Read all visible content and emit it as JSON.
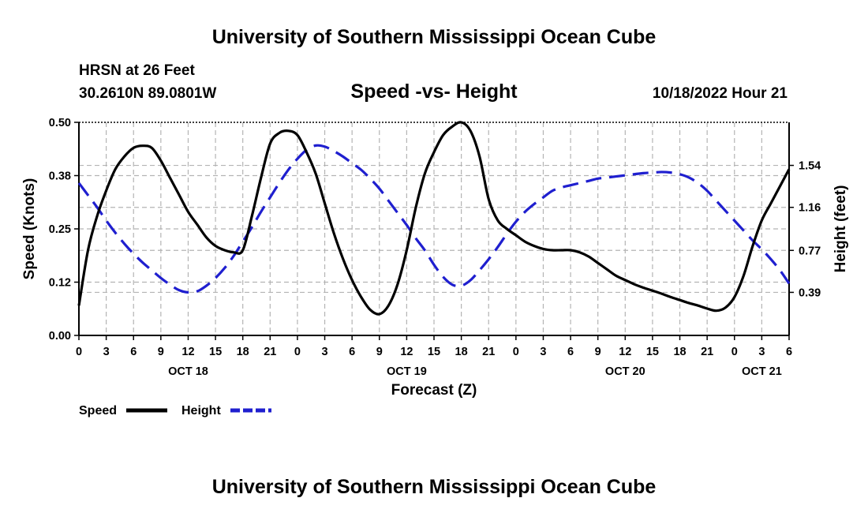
{
  "header": {
    "top_title": "University of Southern Mississippi Ocean Cube",
    "station": "HRSN at 26 Feet",
    "coords": "30.2610N  89.0801W",
    "chart_title": "Speed -vs- Height",
    "timestamp": "10/18/2022 Hour 21",
    "bottom_title": "University of Southern Mississippi Ocean Cube"
  },
  "chart_data": {
    "type": "line",
    "title": "Speed -vs- Height",
    "xlabel": "Forecast (Z)",
    "ylabel": "Speed (Knots)",
    "y2label": "Height (feet)",
    "x_unit": "hours since 10/18 00Z",
    "xlim": [
      0,
      78
    ],
    "ylim": [
      0,
      0.5
    ],
    "y2lim": [
      0.0,
      1.93
    ],
    "grid": true,
    "x_ticks": [
      0,
      3,
      6,
      9,
      12,
      15,
      18,
      21,
      24,
      27,
      30,
      33,
      36,
      39,
      42,
      45,
      48,
      51,
      54,
      57,
      60,
      63,
      66,
      69,
      72,
      75,
      78
    ],
    "x_tick_labels": [
      "0",
      "3",
      "6",
      "9",
      "12",
      "15",
      "18",
      "21",
      "0",
      "3",
      "6",
      "9",
      "12",
      "15",
      "18",
      "21",
      "0",
      "3",
      "6",
      "9",
      "12",
      "15",
      "18",
      "21",
      "0",
      "3",
      "6"
    ],
    "date_labels": [
      {
        "x": 12,
        "label": "OCT 18"
      },
      {
        "x": 36,
        "label": "OCT 19"
      },
      {
        "x": 60,
        "label": "OCT 20"
      },
      {
        "x": 75,
        "label": "OCT 21"
      }
    ],
    "y_ticks": [
      0,
      0.125,
      0.25,
      0.375,
      0.5
    ],
    "y_tick_labels": [
      "0.00",
      "0.12",
      "0.25",
      "0.38",
      "0.50"
    ],
    "y2_ticks": [
      0.39,
      0.77,
      1.16,
      1.54
    ],
    "y2_tick_labels": [
      "0.39",
      "0.77",
      "1.16",
      "1.54"
    ],
    "series": [
      {
        "name": "Speed",
        "axis": "left",
        "color": "#000000",
        "dash": "solid",
        "x": [
          0,
          1,
          2,
          3,
          4,
          5,
          6,
          7,
          8,
          9,
          10,
          11,
          12,
          13,
          14,
          15,
          16,
          17,
          18,
          19,
          20,
          21,
          22,
          23,
          24,
          25,
          26,
          27,
          28,
          29,
          30,
          31,
          32,
          33,
          34,
          35,
          36,
          37,
          38,
          39,
          40,
          41,
          42,
          43,
          44,
          45,
          46,
          47,
          48,
          49,
          50,
          51,
          52,
          53,
          54,
          55,
          56,
          57,
          58,
          59,
          60,
          61,
          62,
          63,
          64,
          65,
          66,
          67,
          68,
          69,
          70,
          71,
          72,
          73,
          74,
          75,
          76,
          77,
          78
        ],
        "values": [
          0.07,
          0.2,
          0.28,
          0.34,
          0.39,
          0.42,
          0.44,
          0.445,
          0.44,
          0.41,
          0.37,
          0.33,
          0.29,
          0.26,
          0.23,
          0.21,
          0.2,
          0.195,
          0.2,
          0.28,
          0.37,
          0.45,
          0.475,
          0.48,
          0.47,
          0.43,
          0.38,
          0.31,
          0.24,
          0.18,
          0.13,
          0.09,
          0.06,
          0.05,
          0.07,
          0.12,
          0.2,
          0.3,
          0.38,
          0.43,
          0.47,
          0.49,
          0.5,
          0.48,
          0.42,
          0.32,
          0.27,
          0.25,
          0.235,
          0.22,
          0.21,
          0.203,
          0.2,
          0.2,
          0.2,
          0.195,
          0.185,
          0.17,
          0.155,
          0.14,
          0.13,
          0.12,
          0.112,
          0.105,
          0.098,
          0.09,
          0.083,
          0.076,
          0.07,
          0.063,
          0.058,
          0.065,
          0.09,
          0.14,
          0.21,
          0.27,
          0.31,
          0.35,
          0.39
        ]
      },
      {
        "name": "Height",
        "axis": "right",
        "color": "#1f1fcf",
        "dash": "dashed",
        "x": [
          0,
          1,
          2,
          3,
          4,
          5,
          6,
          7,
          8,
          9,
          10,
          11,
          12,
          13,
          14,
          15,
          16,
          17,
          18,
          19,
          20,
          21,
          22,
          23,
          24,
          25,
          26,
          27,
          28,
          29,
          30,
          31,
          32,
          33,
          34,
          35,
          36,
          37,
          38,
          39,
          40,
          41,
          42,
          43,
          44,
          45,
          46,
          47,
          48,
          49,
          50,
          51,
          52,
          53,
          54,
          55,
          56,
          57,
          58,
          59,
          60,
          61,
          62,
          63,
          64,
          65,
          66,
          67,
          68,
          69,
          70,
          71,
          72,
          73,
          74,
          75,
          76,
          77,
          78
        ],
        "values": [
          1.38,
          1.27,
          1.16,
          1.04,
          0.93,
          0.83,
          0.74,
          0.66,
          0.59,
          0.52,
          0.46,
          0.41,
          0.39,
          0.4,
          0.45,
          0.52,
          0.61,
          0.72,
          0.85,
          0.98,
          1.12,
          1.25,
          1.38,
          1.5,
          1.6,
          1.68,
          1.72,
          1.71,
          1.67,
          1.62,
          1.56,
          1.5,
          1.42,
          1.33,
          1.22,
          1.11,
          1.0,
          0.88,
          0.77,
          0.64,
          0.53,
          0.46,
          0.45,
          0.5,
          0.59,
          0.69,
          0.8,
          0.92,
          1.03,
          1.12,
          1.19,
          1.25,
          1.31,
          1.34,
          1.36,
          1.38,
          1.4,
          1.42,
          1.43,
          1.44,
          1.45,
          1.46,
          1.47,
          1.475,
          1.48,
          1.475,
          1.46,
          1.43,
          1.38,
          1.31,
          1.22,
          1.13,
          1.04,
          0.95,
          0.86,
          0.78,
          0.69,
          0.59,
          0.47
        ]
      }
    ],
    "legend": [
      {
        "label": "Speed",
        "color": "#000000",
        "dash": "solid"
      },
      {
        "label": "Height",
        "color": "#1f1fcf",
        "dash": "dashed"
      }
    ]
  }
}
